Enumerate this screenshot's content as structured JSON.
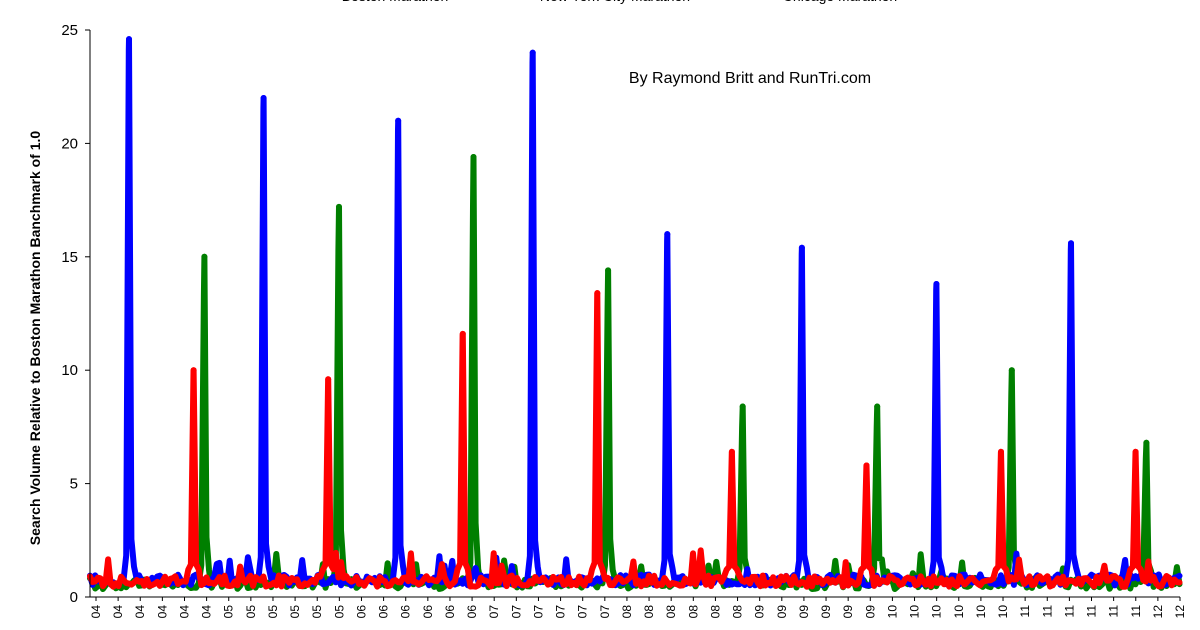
{
  "chart_data": {
    "type": "line",
    "title": "",
    "xlabel": "",
    "ylabel": "Search Volume Relative to Boston Marathon Banchmark of 1.0",
    "annotation": "By Raymond Britt and RunTri.com",
    "ylim": [
      0,
      25
    ],
    "yticks": [
      "0",
      "5",
      "10",
      "15",
      "20",
      "25"
    ],
    "legend": "top",
    "grid": false,
    "xrange": [
      2004.0,
      2012.1
    ],
    "x_tick_labels": [
      "04",
      "04",
      "04",
      "04",
      "04",
      "04",
      "05",
      "05",
      "05",
      "05",
      "05",
      "05",
      "06",
      "06",
      "06",
      "06",
      "06",
      "06",
      "07",
      "07",
      "07",
      "07",
      "07",
      "07",
      "08",
      "08",
      "08",
      "08",
      "08",
      "08",
      "09",
      "09",
      "09",
      "09",
      "09",
      "09",
      "10",
      "10",
      "10",
      "10",
      "10",
      "10",
      "11",
      "11",
      "11",
      "11",
      "11",
      "11",
      "12",
      "12"
    ],
    "baseline": {
      "Boston Marathon": 0.75,
      "New York City Marathon": 0.7,
      "Chicago Marathon": 0.6
    },
    "series": [
      {
        "name": "Boston Marathon",
        "color": "#0000ff",
        "peaks": [
          {
            "x": 2004.29,
            "y": 24.6
          },
          {
            "x": 2005.29,
            "y": 22.0
          },
          {
            "x": 2006.29,
            "y": 21.0
          },
          {
            "x": 2007.29,
            "y": 24.0
          },
          {
            "x": 2008.29,
            "y": 16.0
          },
          {
            "x": 2009.29,
            "y": 15.4
          },
          {
            "x": 2010.29,
            "y": 13.8
          },
          {
            "x": 2011.29,
            "y": 15.6
          }
        ]
      },
      {
        "name": "New York City Marathon",
        "color": "#ff0000",
        "peaks": [
          {
            "x": 2004.77,
            "y": 10.0
          },
          {
            "x": 2005.77,
            "y": 9.6
          },
          {
            "x": 2006.77,
            "y": 11.6
          },
          {
            "x": 2007.77,
            "y": 13.4
          },
          {
            "x": 2008.77,
            "y": 6.4
          },
          {
            "x": 2009.77,
            "y": 5.8
          },
          {
            "x": 2010.77,
            "y": 6.4
          },
          {
            "x": 2011.77,
            "y": 6.4
          }
        ]
      },
      {
        "name": "Chicago Marathon",
        "color": "#007f00",
        "peaks": [
          {
            "x": 2004.85,
            "y": 15.0
          },
          {
            "x": 2005.85,
            "y": 17.2
          },
          {
            "x": 2006.85,
            "y": 19.4
          },
          {
            "x": 2007.85,
            "y": 14.4
          },
          {
            "x": 2008.85,
            "y": 8.4
          },
          {
            "x": 2009.85,
            "y": 8.4
          },
          {
            "x": 2010.85,
            "y": 10.0
          },
          {
            "x": 2011.85,
            "y": 6.8
          }
        ]
      }
    ]
  }
}
